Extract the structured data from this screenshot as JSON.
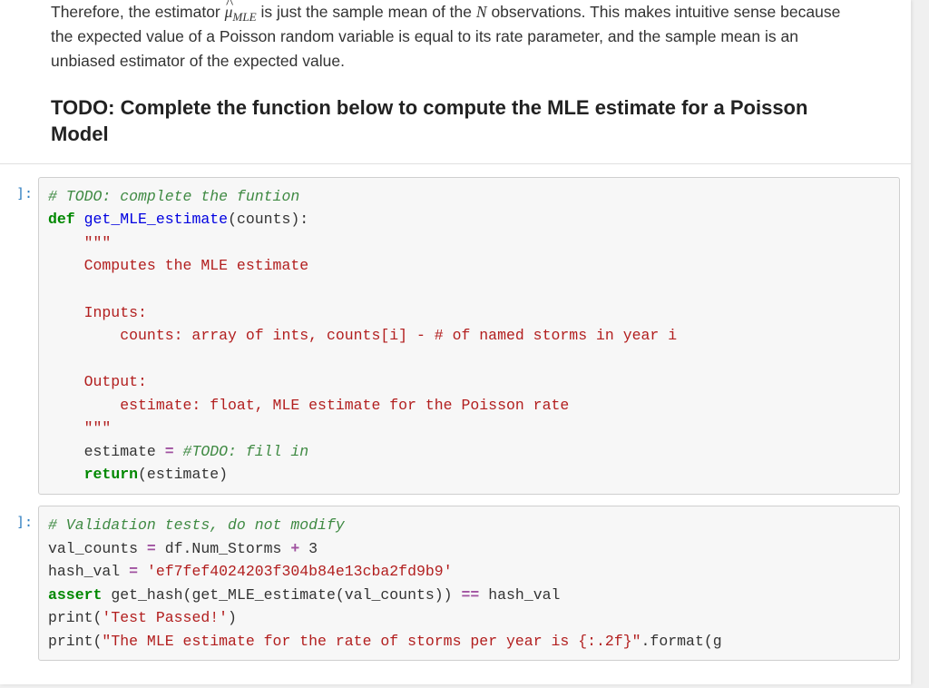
{
  "markdown": {
    "para1_a": "Therefore, the estimator ",
    "para1_b": " is just the sample mean of the ",
    "para1_c": " observations. This makes intuitive sense because the expected value of a Poisson random variable is equal to its rate parameter, and the sample mean is an unbiased estimator of the expected value.",
    "mu_symbol": "μ",
    "mle_sub": "MLE",
    "n_symbol": "N",
    "heading": "TODO: Complete the function below to compute the MLE estimate for a Poisson Model"
  },
  "cell1": {
    "prompt": "]:",
    "l1": "# TODO: complete the funtion",
    "l2a": "def",
    "l2b": "get_MLE_estimate",
    "l2c": "(counts):",
    "l3": "    \"\"\"",
    "l4": "    Computes the MLE estimate",
    "l5": "",
    "l6": "    Inputs:",
    "l7": "        counts: array of ints, counts[i] - # of named storms in year i",
    "l8": "",
    "l9": "    Output:",
    "l10": "        estimate: float, MLE estimate for the Poisson rate",
    "l11": "    \"\"\"",
    "l12a": "    estimate ",
    "l12eq": "=",
    "l12c": "#TODO: fill in",
    "l13a": "    ",
    "l13b": "return",
    "l13c": "(estimate)"
  },
  "cell2": {
    "prompt": "]:",
    "l1": "# Validation tests, do not modify",
    "l2a": "val_counts ",
    "l2eq": "=",
    "l2b": " df.Num_Storms ",
    "l2plus": "+",
    "l2c": " 3",
    "l3a": "hash_val ",
    "l3eq": "=",
    "l3b": " ",
    "l3str": "'ef7fef4024203f304b84e13cba2fd9b9'",
    "l4a": "assert",
    "l4b": " get_hash(get_MLE_estimate(val_counts)) ",
    "l4eq": "==",
    "l4c": " hash_val",
    "l5a": "print(",
    "l5str": "'Test Passed!'",
    "l5b": ")",
    "l6a": "print(",
    "l6str": "\"The MLE estimate for the rate of storms per year is {:.2f}\"",
    "l6b": ".format(g"
  },
  "style": {
    "background": "#ffffff",
    "code_bg": "#f7f7f7",
    "code_border": "#cfcfcf",
    "comment_color": "#3f8a43",
    "keyword_color": "#008800",
    "def_color": "#0000e0",
    "string_color": "#b21e1e",
    "op_color": "#a052a0",
    "body_font_size": 17.5,
    "code_font_size": 16.5,
    "heading_font_size": 22,
    "heading_weight": 800
  }
}
